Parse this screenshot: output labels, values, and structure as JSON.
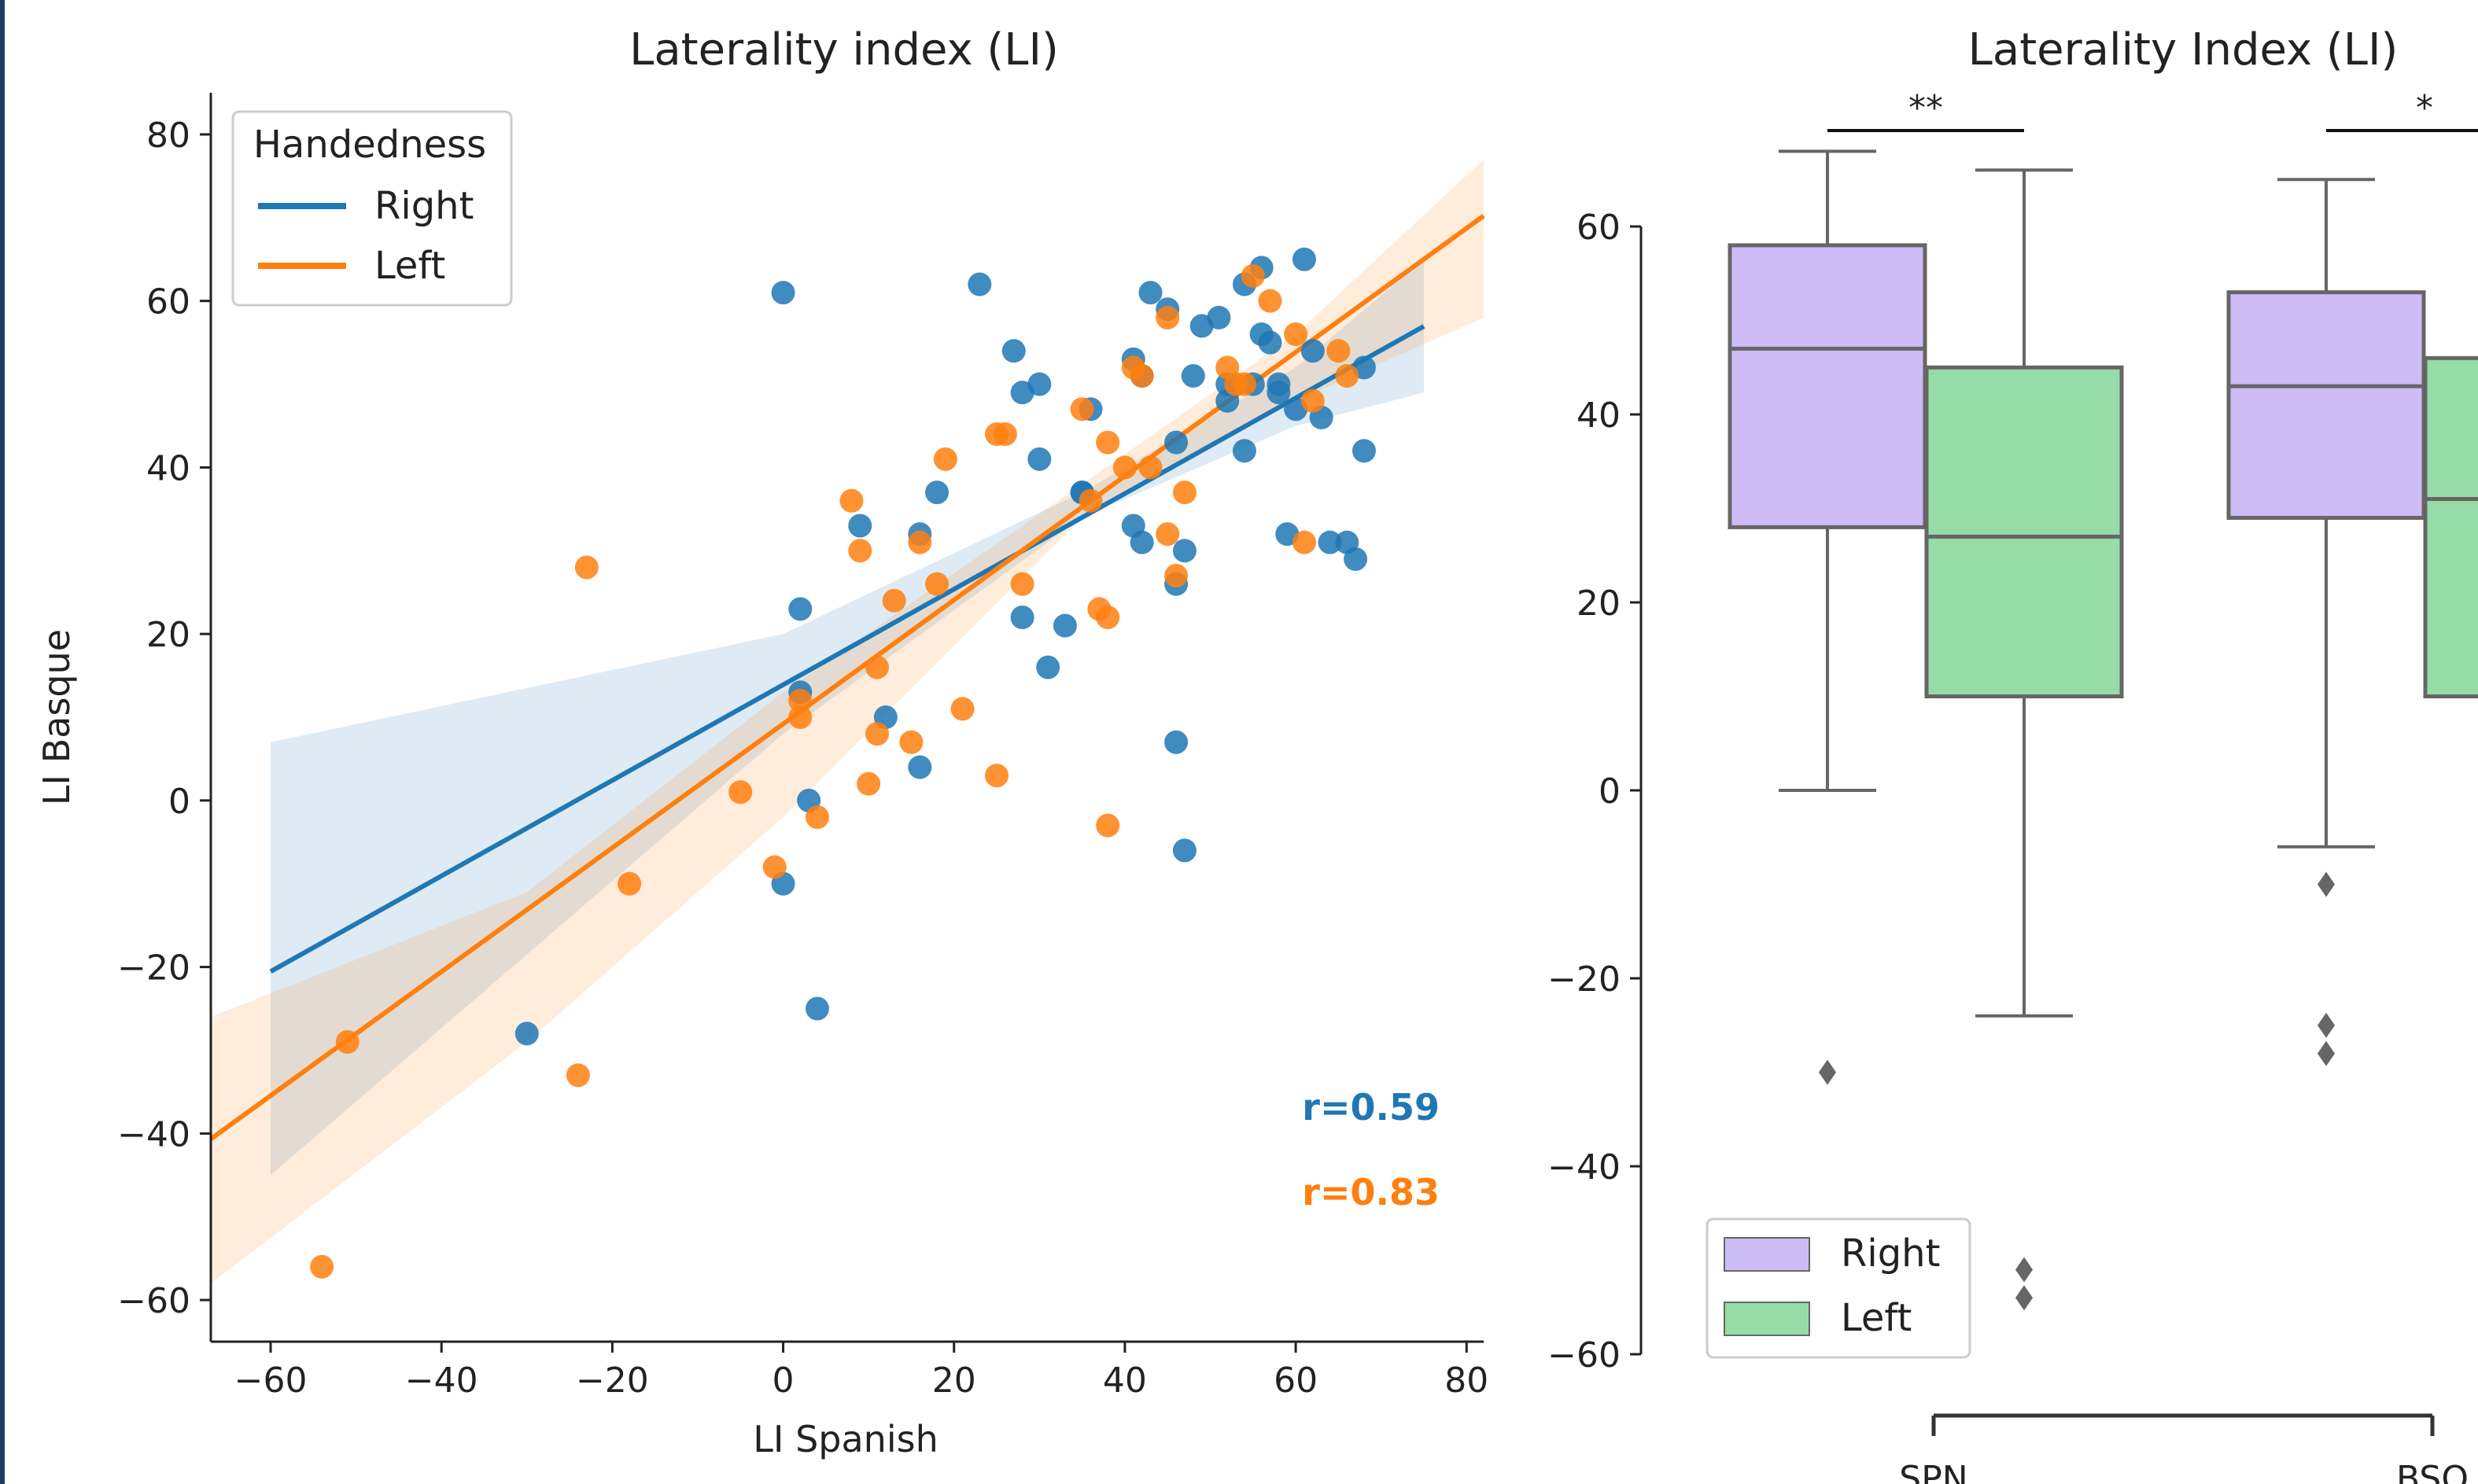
{
  "colors": {
    "right": "#1f77b4",
    "left": "#ff7f0e",
    "box_right": "#cdbcf6",
    "box_left": "#96dca6",
    "box_edge": "#666666",
    "border": "#1f3b66"
  },
  "chart_data": [
    {
      "type": "scatter",
      "title": "Laterality index (LI)",
      "xlabel": "LI Spanish",
      "ylabel": "LI Basque",
      "xlim": [
        -67,
        82
      ],
      "ylim": [
        -65,
        85
      ],
      "xticks": [
        -60,
        -40,
        -20,
        0,
        20,
        40,
        60,
        80
      ],
      "yticks": [
        -60,
        -40,
        -20,
        0,
        20,
        40,
        60,
        80
      ],
      "tick_labels_x": [
        "−60",
        "−40",
        "−20",
        "0",
        "20",
        "40",
        "60",
        "80"
      ],
      "tick_labels_y": [
        "−60",
        "−40",
        "−20",
        "0",
        "20",
        "40",
        "60",
        "80"
      ],
      "legend": {
        "title": "Handedness",
        "entries": [
          "Right",
          "Left"
        ],
        "placement": "top-left"
      },
      "grid": false,
      "series": [
        {
          "name": "Right",
          "color": "#1f77b4",
          "points": [
            [
              0,
              61
            ],
            [
              23,
              62
            ],
            [
              27,
              54
            ],
            [
              28,
              49
            ],
            [
              30,
              50
            ],
            [
              30,
              41
            ],
            [
              18,
              37
            ],
            [
              16,
              32
            ],
            [
              9,
              33
            ],
            [
              2,
              23
            ],
            [
              2,
              13
            ],
            [
              3,
              0
            ],
            [
              0,
              -10
            ],
            [
              4,
              -25
            ],
            [
              -30,
              -28
            ],
            [
              12,
              10
            ],
            [
              16,
              4
            ],
            [
              28,
              22
            ],
            [
              31,
              16
            ],
            [
              33,
              21
            ],
            [
              35,
              37
            ],
            [
              36,
              47
            ],
            [
              41,
              53
            ],
            [
              42,
              51
            ],
            [
              43,
              61
            ],
            [
              45,
              59
            ],
            [
              46,
              43
            ],
            [
              48,
              51
            ],
            [
              49,
              57
            ],
            [
              51,
              58
            ],
            [
              52,
              48
            ],
            [
              54,
              62
            ],
            [
              55,
              50
            ],
            [
              56,
              64
            ],
            [
              56,
              56
            ],
            [
              57,
              55
            ],
            [
              58,
              50
            ],
            [
              58,
              49
            ],
            [
              60,
              47
            ],
            [
              61,
              65
            ],
            [
              62,
              54
            ],
            [
              63,
              46
            ],
            [
              64,
              31
            ],
            [
              66,
              31
            ],
            [
              67,
              29
            ],
            [
              68,
              52
            ],
            [
              68,
              42
            ],
            [
              59,
              32
            ],
            [
              54,
              42
            ],
            [
              41,
              33
            ],
            [
              42,
              31
            ],
            [
              47,
              30
            ],
            [
              46,
              26
            ],
            [
              46,
              7
            ],
            [
              47,
              -6
            ],
            [
              35,
              37
            ],
            [
              52,
              50
            ]
          ],
          "fit": {
            "slope": 0.5741,
            "intercept": 13.9,
            "x_range": [
              -60,
              75
            ]
          },
          "ci_band": {
            "x": [
              -60,
              0,
              35,
              60,
              75
            ],
            "lower": [
              -45,
              8,
              34,
              45,
              49
            ],
            "upper": [
              7,
              20,
              37,
              52,
              65
            ]
          },
          "r_label": "r=0.59"
        },
        {
          "name": "Left",
          "color": "#ff7f0e",
          "points": [
            [
              -54,
              -56
            ],
            [
              -51,
              -29
            ],
            [
              -24,
              -33
            ],
            [
              -23,
              28
            ],
            [
              -18,
              -10
            ],
            [
              -5,
              1
            ],
            [
              -1,
              -8
            ],
            [
              2,
              12
            ],
            [
              2,
              10
            ],
            [
              4,
              -2
            ],
            [
              8,
              36
            ],
            [
              9,
              30
            ],
            [
              10,
              2
            ],
            [
              11,
              8
            ],
            [
              11,
              16
            ],
            [
              13,
              24
            ],
            [
              15,
              7
            ],
            [
              16,
              31
            ],
            [
              18,
              26
            ],
            [
              19,
              41
            ],
            [
              21,
              11
            ],
            [
              25,
              3
            ],
            [
              25,
              44
            ],
            [
              26,
              44
            ],
            [
              28,
              26
            ],
            [
              35,
              47
            ],
            [
              36,
              36
            ],
            [
              37,
              23
            ],
            [
              38,
              22
            ],
            [
              38,
              43
            ],
            [
              38,
              -3
            ],
            [
              40,
              40
            ],
            [
              41,
              52
            ],
            [
              42,
              51
            ],
            [
              43,
              40
            ],
            [
              45,
              58
            ],
            [
              45,
              32
            ],
            [
              46,
              27
            ],
            [
              47,
              37
            ],
            [
              52,
              52
            ],
            [
              53,
              50
            ],
            [
              54,
              50
            ],
            [
              55,
              63
            ],
            [
              57,
              60
            ],
            [
              60,
              56
            ],
            [
              61,
              31
            ],
            [
              62,
              48
            ],
            [
              65,
              54
            ],
            [
              66,
              51
            ]
          ],
          "fit": {
            "slope": 0.7442,
            "intercept": 9.2,
            "x_range": [
              -67,
              82
            ]
          },
          "ci_band": {
            "x": [
              -67,
              -30,
              0,
              35,
              60,
              82
            ],
            "lower": [
              -58,
              -29,
              -2,
              34,
              48,
              58
            ],
            "upper": [
              -26,
              -11,
              13,
              38,
              56,
              77
            ]
          },
          "r_label": "r=0.83"
        }
      ]
    },
    {
      "type": "box",
      "title": "Laterality Index (LI)",
      "categories": [
        "SPN",
        "BSQ"
      ],
      "ylim": [
        -60,
        70
      ],
      "yticks": [
        -60,
        -40,
        -20,
        0,
        20,
        40,
        60
      ],
      "tick_labels_y": [
        "−60",
        "−40",
        "−20",
        "0",
        "20",
        "40",
        "60"
      ],
      "legend": {
        "entries": [
          "Right",
          "Left"
        ],
        "placement": "bottom-left"
      },
      "series": [
        {
          "name": "Right",
          "boxes": [
            {
              "category": "SPN",
              "q1": 28,
              "median": 47,
              "q3": 58,
              "whisker_low": 0,
              "whisker_high": 68,
              "outliers": [
                -30
              ]
            },
            {
              "category": "BSQ",
              "q1": 29,
              "median": 43,
              "q3": 53,
              "whisker_low": -6,
              "whisker_high": 65,
              "outliers": [
                -10,
                -25,
                -28
              ]
            }
          ]
        },
        {
          "name": "Left",
          "boxes": [
            {
              "category": "SPN",
              "q1": 10,
              "median": 27,
              "q3": 45,
              "whisker_low": -24,
              "whisker_high": 66,
              "outliers": [
                -51,
                -54
              ]
            },
            {
              "category": "BSQ",
              "q1": 10,
              "median": 31,
              "q3": 46,
              "whisker_low": null,
              "whisker_high": null,
              "outliers": []
            }
          ]
        }
      ],
      "significance": [
        {
          "category": "SPN",
          "label": "**"
        },
        {
          "category": "BSQ",
          "label": "*"
        }
      ]
    }
  ]
}
